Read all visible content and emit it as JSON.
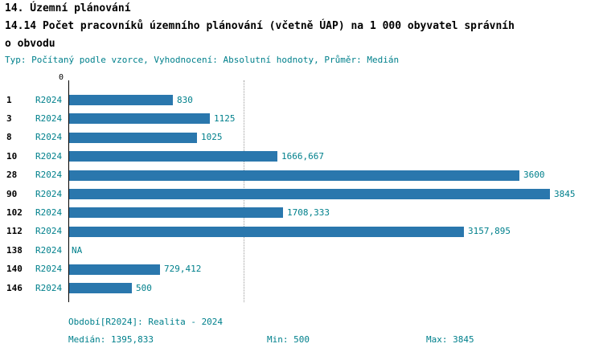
{
  "header": {
    "title_line1": "14. Územní plánování",
    "title_line2": "14.14 Počet pracovníků územního plánování (včetně ÚAP) na 1 000 obyvatel správníh",
    "title_line3": "o obvodu",
    "meta": "Typ: Počítaný podle vzorce, Vyhodnocení: Absolutní hodnoty, Průměr: Medián"
  },
  "colors": {
    "bar": "#2a77ad",
    "teal": "#00808c",
    "axis": "#000000",
    "median_line": "#9b9b9b"
  },
  "chart_data": {
    "type": "bar",
    "orientation": "horizontal",
    "title": "14.14 Počet pracovníků územního plánování (včetně ÚAP) na 1 000 obyvatel správního obvodu",
    "series_label": "R2024",
    "categories": [
      "1",
      "3",
      "8",
      "10",
      "28",
      "90",
      "102",
      "112",
      "138",
      "140",
      "146"
    ],
    "values": [
      830,
      1125,
      1025,
      1666.667,
      3600,
      3845,
      1708.333,
      3157.895,
      null,
      729.412,
      500
    ],
    "value_labels": [
      "830",
      "1125",
      "1025",
      "1666,667",
      "3600",
      "3845",
      "1708,333",
      "3157,895",
      "NA",
      "729,412",
      "500"
    ],
    "xlim": [
      0,
      3845
    ],
    "zero_tick_label": "0",
    "median_value": 1395.833,
    "grid": false,
    "legend_position": "none"
  },
  "footer": {
    "period": "Období[R2024]: Realita - 2024",
    "median": "Medián: 1395,833",
    "min": "Min: 500",
    "max": "Max: 3845"
  }
}
